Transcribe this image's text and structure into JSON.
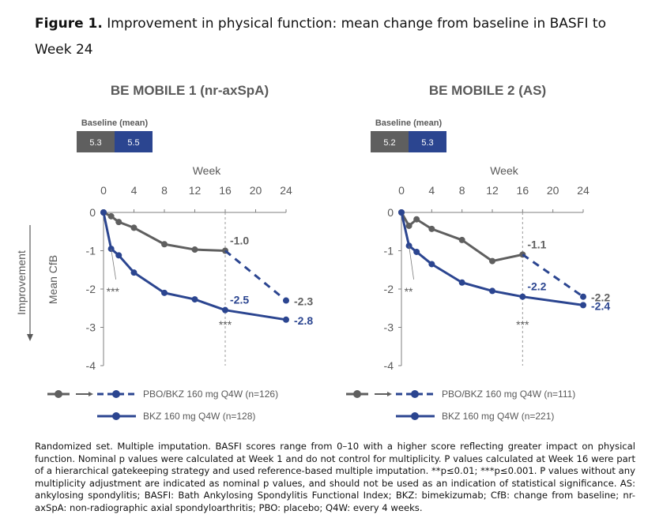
{
  "figure": {
    "title_bold": "Figure 1.",
    "title_text": " Improvement in physical function: mean change from baseline in BASFI to Week 24"
  },
  "colors": {
    "gray": "#5f5f5f",
    "blue": "#2b4590",
    "annotation": "#7a7a7a"
  },
  "footnote": "Randomized set. Multiple imputation. BASFI scores range from 0–10 with a higher score reflecting greater impact on physical function. Nominal p values were calculated at Week 1 and do not control for multiplicity. P values calculated at Week 16 were part of a hierarchical gatekeeping strategy and used reference-based multiple imputation. **p≤0.01; ***p≤0.001. P values without any multiplicity adjustment are indicated as nominal p values, and should not be used as an indication of statistical significance. AS: ankylosing spondylitis; BASFI: Bath Ankylosing Spondylitis Functional Index; BKZ: bimekizumab; CfB: change from baseline; nr-axSpA: non-radiographic axial spondyloarthritis; PBO: placebo; Q4W: every 4 weeks.",
  "shared": {
    "improvement_label": "Improvement",
    "baseline_label": "Baseline (mean)"
  },
  "chart_data": [
    {
      "type": "line",
      "title": "BE MOBILE 1 (nr-axSpA)",
      "xlabel": "Week",
      "ylabel": "Mean CfB",
      "x_ticks": [
        0,
        4,
        8,
        12,
        16,
        20,
        24
      ],
      "y_ticks": [
        0,
        -1,
        -2,
        -3,
        -4
      ],
      "xlim": [
        0,
        24
      ],
      "ylim": [
        -4,
        0
      ],
      "reference_line_x": 16,
      "baseline": {
        "pbo": "5.3",
        "bkz": "5.5"
      },
      "series": [
        {
          "name": "PBO/BKZ 160 mg Q4W (n=126)",
          "color": "#5f5f5f",
          "style": "solid",
          "x": [
            0,
            1,
            2,
            4,
            8,
            12,
            16
          ],
          "y": [
            0,
            -0.1,
            -0.25,
            -0.4,
            -0.83,
            -0.97,
            -1.0
          ]
        },
        {
          "name": "PBO/BKZ 160 mg Q4W (n=126) — switch",
          "color": "#2b4590",
          "style": "dashed",
          "x": [
            16,
            24
          ],
          "y": [
            -1.0,
            -2.3
          ]
        },
        {
          "name": "BKZ 160 mg Q4W (n=128)",
          "color": "#2b4590",
          "style": "solid",
          "x": [
            0,
            1,
            2,
            4,
            8,
            12,
            16,
            24
          ],
          "y": [
            0,
            -0.95,
            -1.12,
            -1.57,
            -2.1,
            -2.27,
            -2.55,
            -2.8
          ]
        }
      ],
      "data_labels": [
        {
          "x": 16,
          "y": -1.0,
          "text": "-1.0",
          "color": "#5f5f5f"
        },
        {
          "x": 24,
          "y": -2.3,
          "text": "-2.3",
          "color": "#5f5f5f"
        },
        {
          "x": 16,
          "y": -2.55,
          "text": "-2.5",
          "color": "#2b4590"
        },
        {
          "x": 24,
          "y": -2.8,
          "text": "-2.8",
          "color": "#2b4590"
        }
      ],
      "annotations": [
        {
          "text": "***",
          "week": 1,
          "note": "Week 1 significance"
        },
        {
          "text": "***",
          "week": 16,
          "note": "Week 16 significance"
        }
      ],
      "legend": [
        "PBO/BKZ 160 mg Q4W (n=126)",
        "BKZ 160 mg Q4W (n=128)"
      ],
      "legend_position": "bottom"
    },
    {
      "type": "line",
      "title": "BE MOBILE 2 (AS)",
      "xlabel": "Week",
      "ylabel": "",
      "x_ticks": [
        0,
        4,
        8,
        12,
        16,
        20,
        24
      ],
      "y_ticks": [
        0,
        -1,
        -2,
        -3,
        -4
      ],
      "xlim": [
        0,
        24
      ],
      "ylim": [
        -4,
        0
      ],
      "reference_line_x": 16,
      "baseline": {
        "pbo": "5.2",
        "bkz": "5.3"
      },
      "series": [
        {
          "name": "PBO/BKZ 160 mg Q4W (n=111)",
          "color": "#5f5f5f",
          "style": "solid",
          "x": [
            0,
            1,
            2,
            4,
            8,
            12,
            16
          ],
          "y": [
            0,
            -0.35,
            -0.18,
            -0.43,
            -0.72,
            -1.27,
            -1.1
          ]
        },
        {
          "name": "PBO/BKZ 160 mg Q4W (n=111) — switch",
          "color": "#2b4590",
          "style": "dashed",
          "x": [
            16,
            24
          ],
          "y": [
            -1.1,
            -2.2
          ]
        },
        {
          "name": "BKZ 160 mg Q4W (n=221)",
          "color": "#2b4590",
          "style": "solid",
          "x": [
            0,
            1,
            2,
            4,
            8,
            12,
            16,
            24
          ],
          "y": [
            0,
            -0.87,
            -1.03,
            -1.35,
            -1.83,
            -2.05,
            -2.2,
            -2.42
          ]
        }
      ],
      "data_labels": [
        {
          "x": 16,
          "y": -1.1,
          "text": "-1.1",
          "color": "#5f5f5f"
        },
        {
          "x": 24,
          "y": -2.2,
          "text": "-2.2",
          "color": "#5f5f5f"
        },
        {
          "x": 16,
          "y": -2.2,
          "text": "-2.2",
          "color": "#2b4590"
        },
        {
          "x": 24,
          "y": -2.42,
          "text": "-2.4",
          "color": "#2b4590"
        }
      ],
      "annotations": [
        {
          "text": "**",
          "week": 1,
          "note": "Week 1 significance"
        },
        {
          "text": "***",
          "week": 16,
          "note": "Week 16 significance"
        }
      ],
      "legend": [
        "PBO/BKZ 160 mg Q4W (n=111)",
        "BKZ 160 mg Q4W (n=221)"
      ],
      "legend_position": "bottom"
    }
  ]
}
